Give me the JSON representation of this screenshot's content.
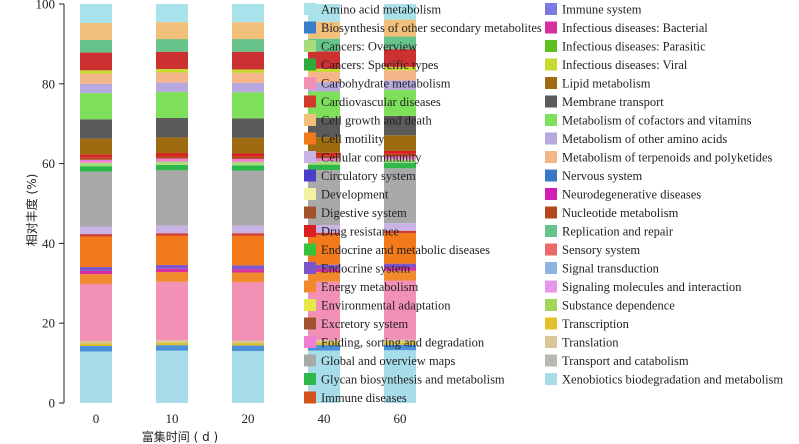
{
  "chart_data": {
    "type": "bar",
    "stacked": true,
    "categories": [
      "0",
      "10",
      "20",
      "40",
      "60"
    ],
    "ylabel": "相对丰度 (%)",
    "xlabel": "富集时间 ( d )",
    "ylim": [
      0,
      100
    ],
    "yticks": [
      0,
      20,
      40,
      60,
      80,
      100
    ],
    "grid": false,
    "legend_position": "right",
    "series": [
      {
        "name": "Xenobiotics biodegradation and metabolism",
        "color": "#a6dde8",
        "values": [
          12.2,
          12.4,
          12.3,
          12.4,
          12.5
        ]
      },
      {
        "name": "Signal transduction",
        "color": "#4a90d9",
        "values": [
          1.3,
          1.3,
          1.3,
          1.3,
          1.3
        ]
      },
      {
        "name": "Transcription",
        "color": "#d9c02c",
        "values": [
          0.6,
          0.6,
          0.6,
          0.6,
          0.6
        ]
      },
      {
        "name": "Translation",
        "color": "#d9c59a",
        "values": [
          0.6,
          0.6,
          0.6,
          0.6,
          0.6
        ]
      },
      {
        "name": "Carbohydrate metabolism",
        "color": "#f291b5",
        "values": [
          13.5,
          13.8,
          13.8,
          13.8,
          14.0
        ]
      },
      {
        "name": "Energy metabolism",
        "color": "#f08a2c",
        "values": [
          2.3,
          2.3,
          2.3,
          2.3,
          2.3
        ]
      },
      {
        "name": "Infectious diseases: Bacterial",
        "color": "#d62fa0",
        "values": [
          0.8,
          0.8,
          0.8,
          0.8,
          0.8
        ]
      },
      {
        "name": "Endocrine system",
        "color": "#7b55c9",
        "values": [
          0.9,
          0.9,
          0.9,
          0.9,
          0.9
        ]
      },
      {
        "name": "Cell motility",
        "color": "#f27a1a",
        "values": [
          7.2,
          6.9,
          7.0,
          7.0,
          7.2
        ]
      },
      {
        "name": "Cardiovascular diseases",
        "color": "#d13a2a",
        "values": [
          0.6,
          0.6,
          0.6,
          0.6,
          0.6
        ]
      },
      {
        "name": "Cellular community",
        "color": "#c9b3e6",
        "values": [
          1.8,
          1.8,
          1.8,
          1.8,
          1.8
        ]
      },
      {
        "name": "Global and overview maps",
        "color": "#a9a9a9",
        "values": [
          13.0,
          13.1,
          13.0,
          13.0,
          13.0
        ]
      },
      {
        "name": "Glycan biosynthesis and metabolism",
        "color": "#2eb84a",
        "values": [
          1.3,
          1.3,
          1.3,
          1.3,
          1.3
        ]
      },
      {
        "name": "Cancers: Overview",
        "color": "#a8db7a",
        "values": [
          0.8,
          0.8,
          0.8,
          0.8,
          0.8
        ]
      },
      {
        "name": "Folding, sorting and degradation",
        "color": "#ee7fd2",
        "values": [
          0.7,
          0.7,
          0.7,
          0.7,
          0.7
        ]
      },
      {
        "name": "Nucleotide metabolism",
        "color": "#b5471f",
        "values": [
          0.6,
          0.6,
          0.6,
          0.6,
          0.6
        ]
      },
      {
        "name": "Drug resistance",
        "color": "#d82020",
        "values": [
          0.7,
          0.7,
          0.7,
          0.7,
          0.7
        ]
      },
      {
        "name": "Lipid metabolism",
        "color": "#9e6b10",
        "values": [
          3.7,
          3.7,
          3.7,
          3.7,
          3.7
        ]
      },
      {
        "name": "Membrane transport",
        "color": "#5a5a5a",
        "values": [
          4.6,
          4.6,
          4.6,
          4.6,
          4.6
        ]
      },
      {
        "name": "Metabolism of cofactors and vitamins",
        "color": "#7ee05a",
        "values": [
          6.2,
          6.2,
          6.2,
          6.2,
          6.2
        ]
      },
      {
        "name": "Metabolism of other amino acids",
        "color": "#b7a9e0",
        "values": [
          2.2,
          2.2,
          2.2,
          2.2,
          2.2
        ]
      },
      {
        "name": "Metabolism of terpenoids and polyketides",
        "color": "#f4b589",
        "values": [
          2.4,
          2.4,
          2.4,
          2.4,
          2.4
        ]
      },
      {
        "name": "Infectious diseases: Viral",
        "color": "#c8d930",
        "values": [
          0.8,
          0.8,
          0.8,
          0.8,
          0.8
        ]
      },
      {
        "name": "Immune diseases",
        "color": "#cc3030",
        "values": [
          4.2,
          4.1,
          4.2,
          4.1,
          4.2
        ]
      },
      {
        "name": "Replication and repair",
        "color": "#66c48a",
        "values": [
          3.0,
          3.0,
          3.0,
          3.0,
          3.0
        ]
      },
      {
        "name": "Cell growth and death",
        "color": "#f2c07a",
        "values": [
          4.0,
          4.0,
          4.0,
          4.0,
          4.0
        ]
      },
      {
        "name": "Amino acid metabolism",
        "color": "#a9e2ea",
        "values": [
          4.5,
          4.3,
          4.3,
          4.2,
          3.7
        ]
      }
    ],
    "legend_left": [
      {
        "name": "Amino acid metabolism",
        "color": "#a9e2ea"
      },
      {
        "name": "Biosynthesis of other secondary metabolites",
        "color": "#3a7ecb"
      },
      {
        "name": "Cancers: Overview",
        "color": "#a8db7a"
      },
      {
        "name": "Cancers: Specific types",
        "color": "#2fa83a"
      },
      {
        "name": "Carbohydrate metabolism",
        "color": "#f291b5"
      },
      {
        "name": "Cardiovascular diseases",
        "color": "#d13a2a"
      },
      {
        "name": "Cell growth and death",
        "color": "#f2c07a"
      },
      {
        "name": "Cell motility",
        "color": "#f27a1a"
      },
      {
        "name": "Cellular community",
        "color": "#c9b3e6"
      },
      {
        "name": "Circulatory system",
        "color": "#4b3fc9"
      },
      {
        "name": "Development",
        "color": "#f3f0a0"
      },
      {
        "name": "Digestive system",
        "color": "#a0522d"
      },
      {
        "name": "Drug resistance",
        "color": "#d82020"
      },
      {
        "name": "Endocrine and metabolic diseases",
        "color": "#36c23a"
      },
      {
        "name": "Endocrine system",
        "color": "#7b55c9"
      },
      {
        "name": "Energy metabolism",
        "color": "#f08a2c"
      },
      {
        "name": "Environmental adaptation",
        "color": "#e6e84a"
      },
      {
        "name": "Excretory system",
        "color": "#a0522d"
      },
      {
        "name": "Folding, sorting and degradation",
        "color": "#ee7fd2"
      },
      {
        "name": "Global and overview maps",
        "color": "#a9a9a9"
      },
      {
        "name": "Glycan biosynthesis and metabolism",
        "color": "#2eb84a"
      },
      {
        "name": "Immune diseases",
        "color": "#d2521c"
      }
    ],
    "legend_right": [
      {
        "name": "Immune system",
        "color": "#7a7ae0"
      },
      {
        "name": "Infectious diseases: Bacterial",
        "color": "#d62fa0"
      },
      {
        "name": "Infectious diseases: Parasitic",
        "color": "#5fbf1f"
      },
      {
        "name": "Infectious diseases: Viral",
        "color": "#c8d930"
      },
      {
        "name": "Lipid metabolism",
        "color": "#9e6b10"
      },
      {
        "name": "Membrane transport",
        "color": "#5a5a5a"
      },
      {
        "name": "Metabolism of cofactors and vitamins",
        "color": "#7ee05a"
      },
      {
        "name": "Metabolism of other amino acids",
        "color": "#b7a9e0"
      },
      {
        "name": "Metabolism of terpenoids and polyketides",
        "color": "#f4b589"
      },
      {
        "name": "Nervous system",
        "color": "#3a78c9"
      },
      {
        "name": "Neurodegenerative diseases",
        "color": "#d21fb4"
      },
      {
        "name": "Nucleotide metabolism",
        "color": "#b5471f"
      },
      {
        "name": "Replication and repair",
        "color": "#66c48a"
      },
      {
        "name": "Sensory system",
        "color": "#e86a6a"
      },
      {
        "name": "Signal transduction",
        "color": "#8fb3e0"
      },
      {
        "name": "Signaling molecules and interaction",
        "color": "#e596e8"
      },
      {
        "name": "Substance dependence",
        "color": "#a4d65a"
      },
      {
        "name": "Transcription",
        "color": "#e5c02a"
      },
      {
        "name": "Translation",
        "color": "#d9c59a"
      },
      {
        "name": "Transport and catabolism",
        "color": "#b8b8b0"
      },
      {
        "name": "Xenobiotics biodegradation and metabolism",
        "color": "#a6dde8"
      }
    ]
  }
}
